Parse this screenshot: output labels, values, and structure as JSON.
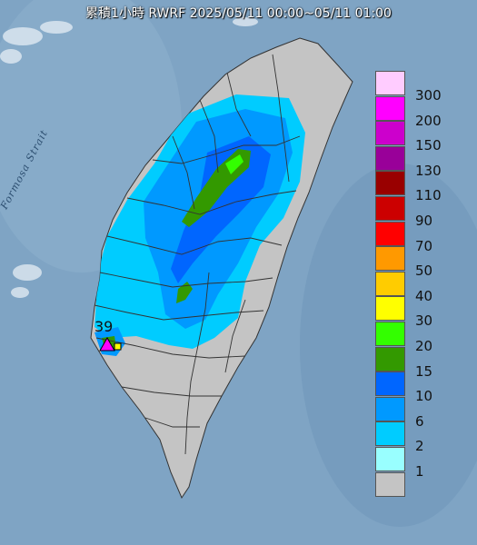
{
  "title": "累積1小時 RWRF 2025/05/11 00:00~05/11 01:00",
  "strait_label": "Formosa Strait",
  "max_value_label": "39",
  "colors": {
    "sea": "#7fa4c4",
    "land": "#c4c4c4"
  },
  "legend": [
    {
      "label": "300",
      "color": "#ffccff"
    },
    {
      "label": "200",
      "color": "#ff00ff"
    },
    {
      "label": "150",
      "color": "#cc00cc"
    },
    {
      "label": "130",
      "color": "#990099"
    },
    {
      "label": "110",
      "color": "#990000"
    },
    {
      "label": "90",
      "color": "#cc0000"
    },
    {
      "label": "70",
      "color": "#ff0000"
    },
    {
      "label": "50",
      "color": "#ff9900"
    },
    {
      "label": "40",
      "color": "#ffcc00"
    },
    {
      "label": "30",
      "color": "#ffff00"
    },
    {
      "label": "20",
      "color": "#33ff00"
    },
    {
      "label": "15",
      "color": "#339900"
    },
    {
      "label": "10",
      "color": "#0066ff"
    },
    {
      "label": "6",
      "color": "#0099ff"
    },
    {
      "label": "2",
      "color": "#00ccff"
    },
    {
      "label": "1",
      "color": "#99ffff"
    },
    {
      "label": "",
      "color": "#c4c4c4"
    }
  ]
}
